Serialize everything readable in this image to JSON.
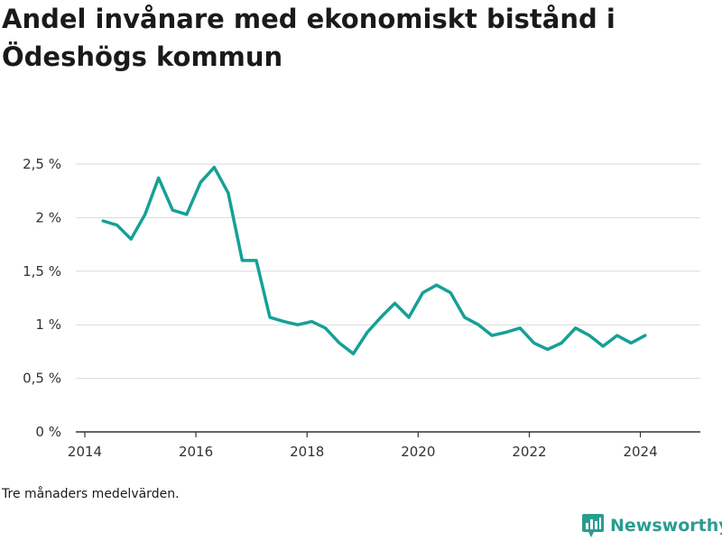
{
  "title": "Andel invånare med ekonomiskt bistånd i Ödeshögs kommun",
  "note": "Tre månaders medelvärden.",
  "brand": {
    "name": "Newsworthy",
    "color": "#2a9d8f"
  },
  "chart_data": {
    "type": "line",
    "title": "Andel invånare med ekonomiskt bistånd i Ödeshögs kommun",
    "xlabel": "",
    "ylabel": "",
    "line_color": "#16a096",
    "grid": true,
    "xlim": [
      "2014-01-01",
      "2024-12-01"
    ],
    "ylim": [
      0,
      2.5
    ],
    "x_ticks": [
      {
        "value": "2014-01-01",
        "label": "2014"
      },
      {
        "value": "2016-01-01",
        "label": "2016"
      },
      {
        "value": "2018-01-01",
        "label": "2018"
      },
      {
        "value": "2020-01-01",
        "label": "2020"
      },
      {
        "value": "2022-01-01",
        "label": "2022"
      },
      {
        "value": "2024-01-01",
        "label": "2024"
      }
    ],
    "y_ticks": [
      {
        "value": 0,
        "label": "0 %"
      },
      {
        "value": 0.5,
        "label": "0,5 %"
      },
      {
        "value": 1,
        "label": "1 %"
      },
      {
        "value": 1.5,
        "label": "1,5 %"
      },
      {
        "value": 2,
        "label": "2 %"
      },
      {
        "value": 2.5,
        "label": "2,5 %"
      }
    ],
    "series": [
      {
        "x": [
          "2014-05",
          "2014-08",
          "2014-11",
          "2015-02",
          "2015-05",
          "2015-08",
          "2015-11",
          "2016-02",
          "2016-05",
          "2016-08",
          "2016-11",
          "2017-02",
          "2017-05",
          "2017-08",
          "2017-11",
          "2018-02",
          "2018-05",
          "2018-08",
          "2018-11",
          "2019-02",
          "2019-05",
          "2019-08",
          "2019-11",
          "2020-02",
          "2020-05",
          "2020-08",
          "2020-11",
          "2021-02",
          "2021-05",
          "2021-08",
          "2021-11",
          "2022-02",
          "2022-05",
          "2022-08",
          "2022-11",
          "2023-02",
          "2023-05",
          "2023-08",
          "2023-11",
          "2024-02"
        ],
        "values": [
          1.97,
          1.93,
          1.8,
          2.03,
          2.37,
          2.07,
          2.03,
          2.33,
          2.47,
          2.23,
          1.6,
          1.6,
          1.07,
          1.03,
          1.0,
          1.03,
          0.97,
          0.83,
          0.73,
          0.93,
          1.07,
          1.2,
          1.07,
          1.3,
          1.37,
          1.3,
          1.07,
          1.0,
          0.9,
          0.93,
          0.97,
          0.83,
          0.77,
          0.83,
          0.97,
          0.9,
          0.8,
          0.9,
          0.83,
          0.9
        ]
      }
    ]
  }
}
